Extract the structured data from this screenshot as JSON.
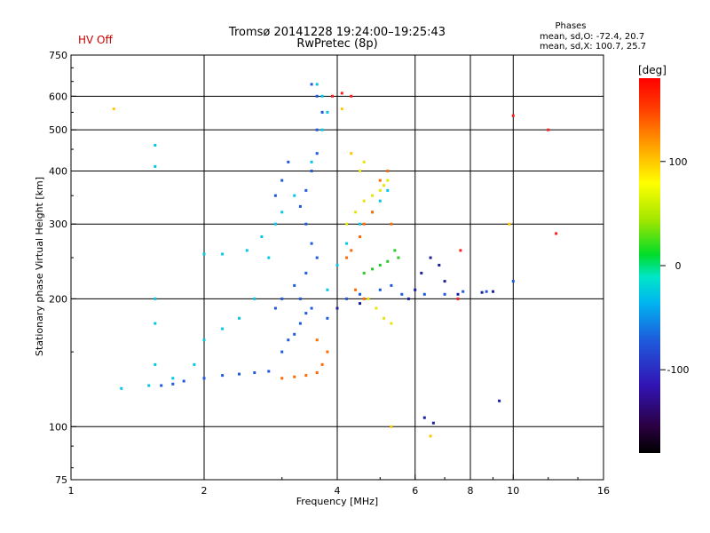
{
  "header": {
    "title": "Tromsø 20141228 19:24:00–19:25:43",
    "subtitle": "RwPretec (8p)",
    "status": "HV Off",
    "status_color": "#cc0000"
  },
  "phase_stats": {
    "title": "Phases",
    "line_o": "mean, sd,O: -72.4, 20.7",
    "line_x": "mean, sd,X: 100.7, 25.7"
  },
  "chart_data": {
    "type": "scatter",
    "xlabel": "Frequency [MHz]",
    "ylabel": "Stationary phase Virtual Height [km]",
    "x_scale": "log",
    "y_scale": "log",
    "xlim": [
      1,
      16
    ],
    "ylim": [
      75,
      750
    ],
    "x_ticks": [
      1,
      2,
      4,
      6,
      8,
      10,
      16
    ],
    "x_tick_labels": [
      "1",
      "2",
      "4",
      "6",
      "8",
      "10",
      "16"
    ],
    "y_ticks": [
      75,
      100,
      200,
      300,
      400,
      500,
      600,
      750
    ],
    "y_tick_labels": [
      "75",
      "100",
      "200",
      "300",
      "400",
      "500",
      "600",
      "750"
    ],
    "grid": true,
    "colorbar": {
      "label": "[deg]",
      "range": [
        -180,
        180
      ],
      "ticks": [
        -100,
        0,
        100
      ],
      "tick_labels": [
        "-100",
        "0",
        "100"
      ]
    },
    "series": [
      {
        "color": "#1e5adc",
        "points": [
          [
            1.6,
            125
          ],
          [
            1.7,
            126
          ],
          [
            1.8,
            128
          ],
          [
            2.0,
            130
          ],
          [
            2.2,
            132
          ],
          [
            2.4,
            133
          ],
          [
            2.6,
            134
          ],
          [
            2.8,
            135
          ],
          [
            3.0,
            150
          ],
          [
            3.1,
            160
          ],
          [
            3.2,
            165
          ],
          [
            3.3,
            175
          ],
          [
            3.4,
            185
          ],
          [
            3.5,
            190
          ],
          [
            3.3,
            200
          ],
          [
            3.2,
            215
          ],
          [
            3.4,
            230
          ],
          [
            3.6,
            250
          ],
          [
            3.5,
            270
          ],
          [
            3.4,
            300
          ],
          [
            3.3,
            330
          ],
          [
            3.4,
            360
          ],
          [
            3.5,
            400
          ],
          [
            3.6,
            440
          ],
          [
            3.6,
            500
          ],
          [
            3.7,
            550
          ],
          [
            3.6,
            600
          ],
          [
            3.5,
            640
          ],
          [
            2.9,
            350
          ],
          [
            3.0,
            380
          ],
          [
            3.1,
            420
          ],
          [
            2.9,
            190
          ],
          [
            3.0,
            200
          ],
          [
            3.8,
            180
          ],
          [
            4.0,
            190
          ],
          [
            4.2,
            200
          ],
          [
            4.5,
            205
          ],
          [
            5.0,
            210
          ],
          [
            5.3,
            215
          ],
          [
            5.6,
            205
          ],
          [
            6.3,
            205
          ],
          [
            7.0,
            205
          ],
          [
            7.7,
            208
          ],
          [
            8.7,
            208
          ],
          [
            10.0,
            220
          ]
        ]
      },
      {
        "color": "#00c8e6",
        "points": [
          [
            1.3,
            123
          ],
          [
            1.5,
            125
          ],
          [
            1.7,
            130
          ],
          [
            1.9,
            140
          ],
          [
            2.0,
            160
          ],
          [
            2.2,
            170
          ],
          [
            2.4,
            180
          ],
          [
            2.6,
            200
          ],
          [
            2.8,
            250
          ],
          [
            2.0,
            255
          ],
          [
            2.2,
            255
          ],
          [
            2.5,
            260
          ],
          [
            2.7,
            280
          ],
          [
            2.9,
            300
          ],
          [
            3.0,
            320
          ],
          [
            3.2,
            350
          ],
          [
            3.5,
            420
          ],
          [
            3.7,
            500
          ],
          [
            3.8,
            550
          ],
          [
            3.7,
            600
          ],
          [
            3.6,
            640
          ],
          [
            3.8,
            210
          ],
          [
            4.0,
            240
          ],
          [
            4.2,
            270
          ],
          [
            4.5,
            300
          ],
          [
            4.8,
            320
          ],
          [
            5.0,
            340
          ],
          [
            5.2,
            360
          ],
          [
            1.55,
            140
          ],
          [
            1.55,
            175
          ],
          [
            1.55,
            200
          ],
          [
            1.55,
            460
          ],
          [
            1.55,
            410
          ]
        ]
      },
      {
        "color": "#ff6a00",
        "points": [
          [
            3.0,
            130
          ],
          [
            3.2,
            131
          ],
          [
            3.4,
            132
          ],
          [
            3.6,
            134
          ],
          [
            3.7,
            140
          ],
          [
            3.8,
            150
          ],
          [
            3.6,
            160
          ],
          [
            4.2,
            250
          ],
          [
            4.3,
            260
          ],
          [
            4.5,
            280
          ],
          [
            4.6,
            300
          ],
          [
            4.8,
            320
          ],
          [
            5.0,
            380
          ],
          [
            5.2,
            400
          ],
          [
            4.4,
            210
          ],
          [
            4.6,
            200
          ],
          [
            5.3,
            300
          ]
        ]
      },
      {
        "color": "#e6e600",
        "points": [
          [
            4.2,
            300
          ],
          [
            4.4,
            320
          ],
          [
            4.6,
            340
          ],
          [
            4.8,
            350
          ],
          [
            5.0,
            360
          ],
          [
            5.1,
            370
          ],
          [
            5.2,
            380
          ],
          [
            4.5,
            400
          ],
          [
            4.6,
            420
          ],
          [
            4.7,
            200
          ],
          [
            4.9,
            190
          ],
          [
            5.1,
            180
          ],
          [
            5.3,
            175
          ]
        ]
      },
      {
        "color": "#28c828",
        "points": [
          [
            4.6,
            230
          ],
          [
            4.8,
            235
          ],
          [
            5.0,
            240
          ],
          [
            5.2,
            245
          ],
          [
            5.5,
            250
          ],
          [
            5.4,
            260
          ]
        ]
      },
      {
        "color": "#1e1ea0",
        "points": [
          [
            5.8,
            200
          ],
          [
            6.0,
            210
          ],
          [
            6.2,
            230
          ],
          [
            6.5,
            250
          ],
          [
            6.8,
            240
          ],
          [
            7.0,
            220
          ],
          [
            7.5,
            205
          ],
          [
            8.5,
            207
          ],
          [
            9.0,
            208
          ],
          [
            4.0,
            190
          ],
          [
            4.5,
            195
          ],
          [
            6.3,
            105
          ],
          [
            6.6,
            102
          ],
          [
            9.3,
            115
          ]
        ]
      },
      {
        "color": "#ff1e1e",
        "points": [
          [
            3.9,
            600
          ],
          [
            4.1,
            610
          ],
          [
            4.3,
            600
          ],
          [
            10.0,
            540
          ],
          [
            12.0,
            500
          ],
          [
            12.5,
            285
          ],
          [
            7.6,
            260
          ],
          [
            7.5,
            200
          ]
        ]
      },
      {
        "color": "#ffc800",
        "points": [
          [
            1.25,
            560
          ],
          [
            4.1,
            560
          ],
          [
            4.3,
            440
          ],
          [
            6.5,
            95
          ],
          [
            5.3,
            100
          ],
          [
            9.8,
            300
          ]
        ]
      }
    ]
  }
}
